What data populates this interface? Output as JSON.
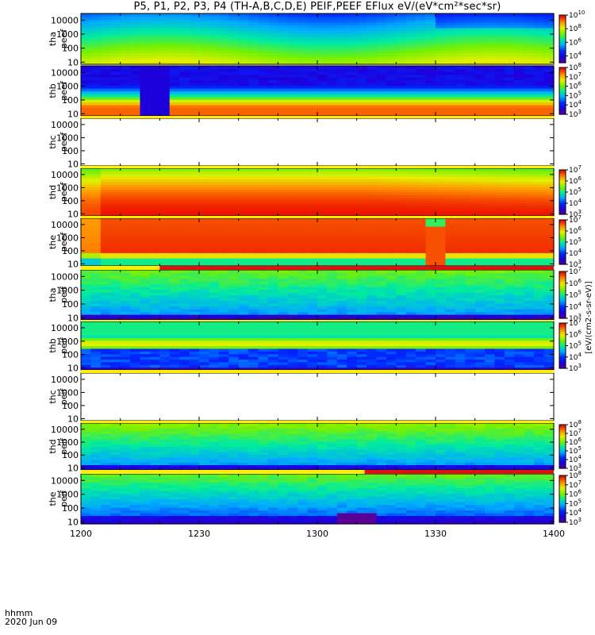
{
  "title": "P5, P1, P2, P3, P4 (TH-A,B,C,D,E) PEIF,PEEF EFlux eV/(eV*cm²*sec*sr)",
  "footer": {
    "time_label": "hhmm",
    "date_label": "2020 Jun 09"
  },
  "colorbar_unit_label": "[eV/(cm2-s-sr-eV)]",
  "chart_data": {
    "type": "heatmap",
    "title": "P5, P1, P2, P3, P4 (TH-A,B,C,D,E) PEIF,PEEF EFlux eV/(eV*cm²*sec*sr)",
    "x": {
      "tick_labels": [
        "1200",
        "1230",
        "1300",
        "1330",
        "1400"
      ],
      "tick_values_min": [
        0,
        30,
        60,
        90,
        120
      ],
      "range_min": [
        0,
        120
      ]
    },
    "y": {
      "scale": "log",
      "tick_labels": [
        "10",
        "100",
        "1000",
        "10000"
      ],
      "range_eV": [
        7,
        30000
      ]
    },
    "panels": [
      {
        "label": "tha peef",
        "state": "data",
        "color_exp_range": [
          3,
          10
        ],
        "colorbar_ticks": [
          4,
          6,
          8,
          10
        ]
      },
      {
        "label": "thb peef",
        "state": "data",
        "color_exp_range": [
          3,
          8
        ],
        "colorbar_ticks": [
          3,
          4,
          5,
          6,
          7,
          8
        ]
      },
      {
        "label": "thc peef",
        "state": "empty"
      },
      {
        "label": "thd peef",
        "state": "data",
        "color_exp_range": [
          3,
          7
        ],
        "colorbar_ticks": [
          3,
          4,
          5,
          6,
          7
        ]
      },
      {
        "label": "the peef",
        "state": "data",
        "color_exp_range": [
          3,
          7
        ],
        "colorbar_ticks": [
          3,
          4,
          5,
          6,
          7
        ]
      },
      {
        "label": "tha peif",
        "state": "data",
        "color_exp_range": [
          3,
          7
        ],
        "colorbar_ticks": [
          3,
          4,
          5,
          6,
          7
        ]
      },
      {
        "label": "thb peif",
        "state": "data",
        "color_exp_range": [
          3,
          7
        ],
        "colorbar_ticks": [
          3,
          4,
          5,
          6,
          7
        ]
      },
      {
        "label": "thc peif",
        "state": "empty"
      },
      {
        "label": "thd peif",
        "state": "data",
        "color_exp_range": [
          3,
          8
        ],
        "colorbar_ticks": [
          3,
          4,
          5,
          6,
          7,
          8
        ]
      },
      {
        "label": "the peif",
        "state": "data",
        "color_exp_range": [
          3,
          8
        ],
        "colorbar_ticks": [
          3,
          4,
          5,
          6,
          7,
          8
        ]
      }
    ],
    "mode_bars": [
      {
        "segments": [
          {
            "from": 0,
            "to": 120,
            "color": "#ffee00"
          }
        ]
      },
      {
        "segments": [
          {
            "from": 0,
            "to": 120,
            "color": "#ffee00"
          }
        ]
      },
      {
        "segments": [
          {
            "from": 0,
            "to": 120,
            "color": "#ffee00"
          }
        ]
      },
      {
        "segments": [
          {
            "from": 0,
            "to": 120,
            "color": "#ffee00"
          }
        ]
      },
      {
        "segments": [
          {
            "from": 0,
            "to": 20,
            "color": "#ffee00"
          },
          {
            "from": 20,
            "to": 120,
            "color": "#dd1111"
          }
        ]
      },
      {
        "segments": [
          {
            "from": 0,
            "to": 120,
            "color": "#ffee00"
          }
        ]
      },
      {
        "segments": [
          {
            "from": 0,
            "to": 120,
            "color": "#ffee00"
          }
        ]
      },
      {
        "segments": [
          {
            "from": 0,
            "to": 120,
            "color": "#ffee00"
          }
        ]
      },
      {
        "segments": [
          {
            "from": 0,
            "to": 72,
            "color": "#ffee00"
          },
          {
            "from": 72,
            "to": 120,
            "color": "#dd1111"
          }
        ]
      }
    ]
  }
}
